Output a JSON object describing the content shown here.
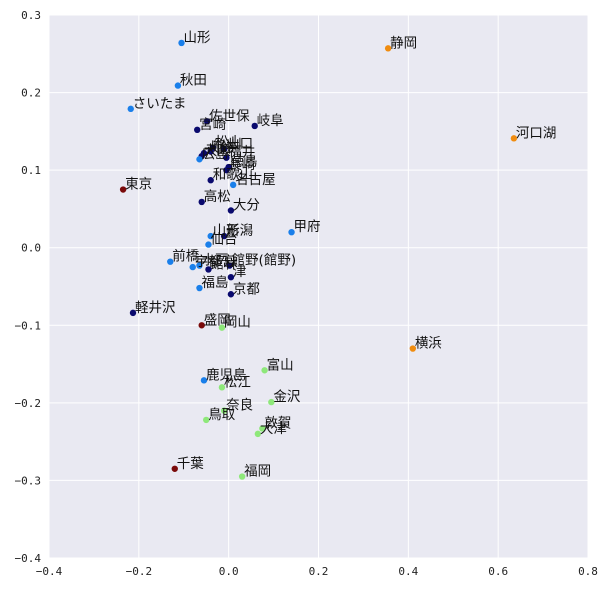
{
  "chart_data": {
    "type": "scatter",
    "title": "",
    "xlabel": "",
    "ylabel": "",
    "xlim": [
      -0.4,
      0.8
    ],
    "ylim": [
      -0.4,
      0.3
    ],
    "grid": true,
    "xticks": [
      -0.4,
      -0.2,
      0.0,
      0.2,
      0.4,
      0.6,
      0.8
    ],
    "yticks": [
      -0.4,
      -0.3,
      -0.2,
      -0.1,
      0.0,
      0.1,
      0.2,
      0.3
    ],
    "xtick_labels": [
      "−0.4",
      "−0.2",
      "0.0",
      "0.2",
      "0.4",
      "0.6",
      "0.8"
    ],
    "ytick_labels": [
      "−0.4",
      "−0.3",
      "−0.2",
      "−0.1",
      "0.0",
      "0.1",
      "0.2",
      "0.3"
    ],
    "colors": {
      "navy": "#0a0a6e",
      "blue": "#1a7fea",
      "orange": "#f08c10",
      "green": "#8ee87a",
      "darkred": "#7a0a0a"
    },
    "points": [
      {
        "label": "山形",
        "x": -0.105,
        "y": 0.264,
        "color": "blue"
      },
      {
        "label": "静岡",
        "x": 0.355,
        "y": 0.257,
        "color": "orange"
      },
      {
        "label": "秋田",
        "x": -0.113,
        "y": 0.209,
        "color": "blue"
      },
      {
        "label": "さいたま",
        "x": -0.218,
        "y": 0.179,
        "color": "blue"
      },
      {
        "label": "佐世保",
        "x": -0.048,
        "y": 0.163,
        "color": "navy"
      },
      {
        "label": "岐阜",
        "x": 0.058,
        "y": 0.157,
        "color": "navy"
      },
      {
        "label": "宮崎",
        "x": -0.07,
        "y": 0.152,
        "color": "navy"
      },
      {
        "label": "河口湖",
        "x": 0.635,
        "y": 0.141,
        "color": "orange"
      },
      {
        "label": "松山",
        "x": -0.035,
        "y": 0.129,
        "color": "navy"
      },
      {
        "label": "熊本",
        "x": -0.04,
        "y": 0.124,
        "color": "navy"
      },
      {
        "label": "山口",
        "x": -0.01,
        "y": 0.127,
        "color": "navy"
      },
      {
        "label": "大分",
        "x": -0.055,
        "y": 0.122,
        "color": "navy"
      },
      {
        "label": "大阪",
        "x": -0.06,
        "y": 0.118,
        "color": "navy"
      },
      {
        "label": "広島",
        "x": -0.065,
        "y": 0.114,
        "color": "blue"
      },
      {
        "label": "福井",
        "x": -0.005,
        "y": 0.116,
        "color": "navy"
      },
      {
        "label": "徳島",
        "x": 0.0,
        "y": 0.104,
        "color": "navy"
      },
      {
        "label": "長崎",
        "x": -0.005,
        "y": 0.1,
        "color": "navy"
      },
      {
        "label": "和歌山",
        "x": -0.04,
        "y": 0.087,
        "color": "navy"
      },
      {
        "label": "名古屋",
        "x": 0.01,
        "y": 0.081,
        "color": "blue"
      },
      {
        "label": "東京",
        "x": -0.235,
        "y": 0.075,
        "color": "darkred"
      },
      {
        "label": "高松",
        "x": -0.06,
        "y": 0.059,
        "color": "navy"
      },
      {
        "label": "大分",
        "x": 0.005,
        "y": 0.048,
        "color": "navy"
      },
      {
        "label": "甲府",
        "x": 0.14,
        "y": 0.02,
        "color": "blue"
      },
      {
        "label": "新潟",
        "x": -0.01,
        "y": 0.015,
        "color": "navy"
      },
      {
        "label": "山形",
        "x": -0.04,
        "y": 0.015,
        "color": "blue"
      },
      {
        "label": "仙台",
        "x": -0.045,
        "y": 0.004,
        "color": "blue"
      },
      {
        "label": "前橋",
        "x": -0.13,
        "y": -0.018,
        "color": "blue"
      },
      {
        "label": "宇都宮",
        "x": -0.08,
        "y": -0.025,
        "color": "blue"
      },
      {
        "label": "水戸",
        "x": -0.065,
        "y": -0.023,
        "color": "blue"
      },
      {
        "label": "館林",
        "x": -0.045,
        "y": -0.028,
        "color": "navy"
      },
      {
        "label": "館野(館野)",
        "x": 0.002,
        "y": -0.023,
        "color": "navy"
      },
      {
        "label": "津",
        "x": 0.005,
        "y": -0.038,
        "color": "navy"
      },
      {
        "label": "福島",
        "x": -0.065,
        "y": -0.052,
        "color": "blue"
      },
      {
        "label": "京都",
        "x": 0.005,
        "y": -0.06,
        "color": "navy"
      },
      {
        "label": "軽井沢",
        "x": -0.213,
        "y": -0.084,
        "color": "navy"
      },
      {
        "label": "盛岡",
        "x": -0.06,
        "y": -0.1,
        "color": "darkred"
      },
      {
        "label": "岡山",
        "x": -0.015,
        "y": -0.103,
        "color": "green"
      },
      {
        "label": "横浜",
        "x": 0.41,
        "y": -0.13,
        "color": "orange"
      },
      {
        "label": "富山",
        "x": 0.08,
        "y": -0.158,
        "color": "green"
      },
      {
        "label": "鹿児島",
        "x": -0.055,
        "y": -0.171,
        "color": "blue"
      },
      {
        "label": "松江",
        "x": -0.015,
        "y": -0.18,
        "color": "green"
      },
      {
        "label": "金沢",
        "x": 0.095,
        "y": -0.199,
        "color": "green"
      },
      {
        "label": "奈良",
        "x": -0.01,
        "y": -0.21,
        "color": "green"
      },
      {
        "label": "鳥取",
        "x": -0.05,
        "y": -0.222,
        "color": "green"
      },
      {
        "label": "敦賀",
        "x": 0.075,
        "y": -0.233,
        "color": "green"
      },
      {
        "label": "大津",
        "x": 0.065,
        "y": -0.24,
        "color": "green"
      },
      {
        "label": "千葉",
        "x": -0.12,
        "y": -0.285,
        "color": "darkred"
      },
      {
        "label": "福岡",
        "x": 0.03,
        "y": -0.295,
        "color": "green"
      }
    ]
  }
}
